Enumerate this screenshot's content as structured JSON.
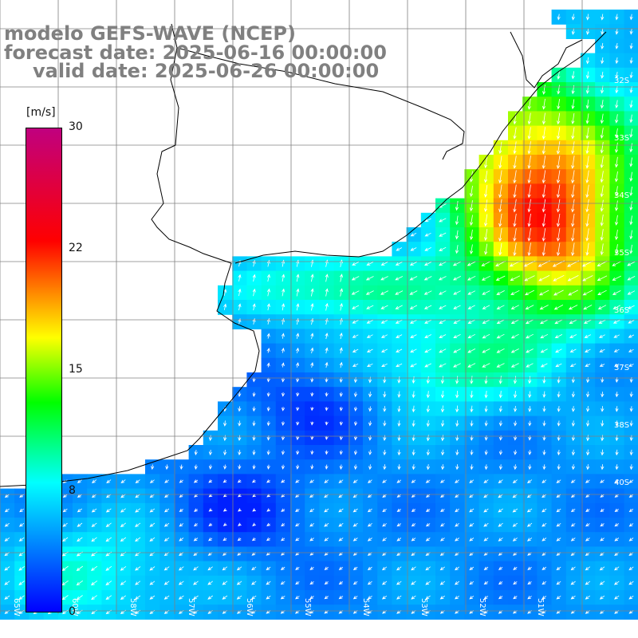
{
  "title": {
    "line1": "modelo GEFS-WAVE (NCEP)",
    "line2": "forecast date: 2025-06-16 00:00:00",
    "line3": "valid date: 2025-06-26 00:00:00"
  },
  "colorbar": {
    "unit": "[m/s]",
    "min": 0,
    "max": 30,
    "ticks": [
      "30",
      "22",
      "15",
      "8",
      "0"
    ],
    "colors": [
      "#0000ff",
      "#00ffff",
      "#00ff00",
      "#ffff00",
      "#ff0000",
      "#c0007f"
    ]
  },
  "lat_labels": [
    "32S",
    "33S",
    "34S",
    "35S",
    "36S",
    "37S",
    "38S",
    "40S"
  ],
  "lon_labels": [
    "65W",
    "60W",
    "58W",
    "57W",
    "56W",
    "55W",
    "54W",
    "53W",
    "52W",
    "51W"
  ],
  "colors": {
    "land": "#ffffff",
    "coast": "#000000",
    "grid": "#808080",
    "arrows": "#ffffff"
  }
}
